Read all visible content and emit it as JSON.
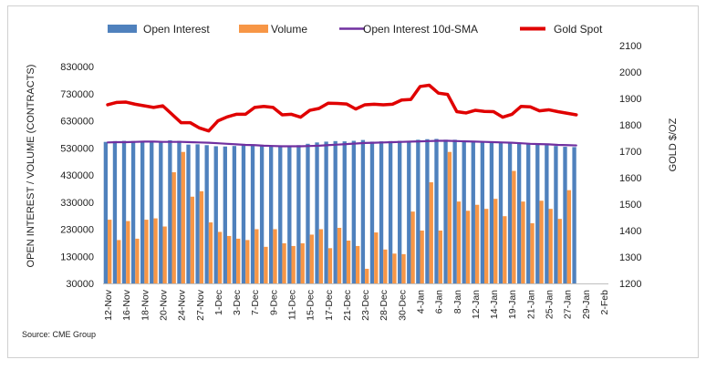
{
  "chart_data": {
    "type": "bar",
    "title": "",
    "legend_placement": "top",
    "legend": [
      "Open Interest",
      "Volume",
      "Open Interest 10d-SMA",
      "Gold Spot"
    ],
    "ylabel_left": "OPEN INTEREST / VOLUME (CONTRACTS)",
    "ylabel_right": "GOLD $/OZ",
    "y_left_ticks": [
      "830000",
      "730000",
      "630000",
      "530000",
      "430000",
      "330000",
      "230000",
      "130000",
      "30000"
    ],
    "y_right_ticks": [
      "2100",
      "2000",
      "1900",
      "1800",
      "1700",
      "1600",
      "1500",
      "1400",
      "1300",
      "1200"
    ],
    "y_left_range": [
      30000,
      830000
    ],
    "y_right_range": [
      1200,
      2100
    ],
    "x_tick_labels": [
      "12-Nov",
      "16-Nov",
      "18-Nov",
      "20-Nov",
      "24-Nov",
      "27-Nov",
      "1-Dec",
      "3-Dec",
      "7-Dec",
      "9-Dec",
      "11-Dec",
      "15-Dec",
      "17-Dec",
      "21-Dec",
      "23-Dec",
      "28-Dec",
      "30-Dec",
      "4-Jan",
      "6-Jan",
      "8-Jan",
      "12-Jan",
      "14-Jan",
      "19-Jan",
      "21-Jan",
      "25-Jan",
      "27-Jan",
      "29-Jan",
      "2-Feb"
    ],
    "dates": [
      "12-Nov",
      "13-Nov",
      "16-Nov",
      "17-Nov",
      "18-Nov",
      "19-Nov",
      "20-Nov",
      "23-Nov",
      "24-Nov",
      "25-Nov",
      "27-Nov",
      "30-Nov",
      "1-Dec",
      "2-Dec",
      "3-Dec",
      "4-Dec",
      "7-Dec",
      "8-Dec",
      "9-Dec",
      "10-Dec",
      "11-Dec",
      "14-Dec",
      "15-Dec",
      "16-Dec",
      "17-Dec",
      "18-Dec",
      "21-Dec",
      "22-Dec",
      "23-Dec",
      "24-Dec",
      "28-Dec",
      "29-Dec",
      "30-Dec",
      "31-Dec",
      "4-Jan",
      "5-Jan",
      "6-Jan",
      "7-Jan",
      "8-Jan",
      "11-Jan",
      "12-Jan",
      "13-Jan",
      "14-Jan",
      "15-Jan",
      "19-Jan",
      "20-Jan",
      "21-Jan",
      "22-Jan",
      "25-Jan",
      "26-Jan",
      "27-Jan",
      "28-Jan",
      "29-Jan",
      "1-Feb",
      "2-Feb"
    ],
    "grid": false,
    "series": [
      {
        "name": "Open Interest",
        "type": "bar",
        "axis": "left",
        "color": "#4f81bd",
        "values": [
          552000,
          555000,
          556000,
          555000,
          554000,
          553000,
          553000,
          558000,
          556000,
          542000,
          543000,
          540000,
          536000,
          535000,
          537000,
          540000,
          540000,
          539000,
          537000,
          535000,
          536000,
          540000,
          545000,
          550000,
          553000,
          555000,
          554000,
          556000,
          559000,
          553000,
          554000,
          555000,
          556000,
          556000,
          560000,
          562000,
          563000,
          560000,
          560000,
          557000,
          552000,
          550000,
          548000,
          548000,
          547000,
          545000,
          543000,
          541000,
          540000,
          537000,
          534000,
          533000,
          null,
          null,
          null
        ]
      },
      {
        "name": "Volume",
        "type": "bar",
        "axis": "left",
        "color": "#f79646",
        "values": [
          265000,
          190000,
          260000,
          195000,
          265000,
          270000,
          240000,
          440000,
          515000,
          350000,
          370000,
          255000,
          220000,
          205000,
          195000,
          190000,
          230000,
          165000,
          230000,
          178000,
          168000,
          178000,
          210000,
          230000,
          160000,
          235000,
          188000,
          168000,
          84000,
          218000,
          155000,
          140000,
          138000,
          295000,
          225000,
          403000,
          225000,
          515000,
          332000,
          298000,
          320000,
          305000,
          342000,
          278000,
          445000,
          332000,
          252000,
          335000,
          305000,
          268000,
          374000,
          null,
          null,
          null,
          null
        ]
      },
      {
        "name": "Open Interest 10d-SMA",
        "type": "line",
        "axis": "left",
        "color": "#7030a0",
        "values": [
          550000,
          551000,
          551000,
          552000,
          553000,
          553000,
          552000,
          552000,
          552000,
          551000,
          550000,
          549000,
          547000,
          545000,
          543000,
          541000,
          540000,
          538000,
          537000,
          536000,
          536000,
          536000,
          537000,
          538000,
          540000,
          542000,
          544000,
          546000,
          548000,
          549000,
          550000,
          551000,
          552000,
          553000,
          554000,
          555000,
          556000,
          556000,
          555000,
          554000,
          553000,
          552000,
          551000,
          550000,
          549000,
          547000,
          545000,
          544000,
          543000,
          541000,
          540000,
          539000,
          null,
          null,
          null
        ]
      },
      {
        "name": "Gold Spot",
        "type": "line",
        "axis": "right",
        "color": "#e00000",
        "values": [
          1876,
          1885,
          1886,
          1878,
          1872,
          1866,
          1872,
          1840,
          1808,
          1808,
          1788,
          1777,
          1815,
          1830,
          1840,
          1840,
          1866,
          1870,
          1866,
          1838,
          1840,
          1829,
          1855,
          1862,
          1882,
          1881,
          1879,
          1860,
          1876,
          1878,
          1876,
          1878,
          1894,
          1896,
          1945,
          1950,
          1920,
          1915,
          1850,
          1845,
          1855,
          1851,
          1850,
          1829,
          1840,
          1870,
          1868,
          1853,
          1857,
          1850,
          1844,
          1838,
          null,
          null,
          null
        ]
      }
    ]
  },
  "source": "Source: CME Group"
}
